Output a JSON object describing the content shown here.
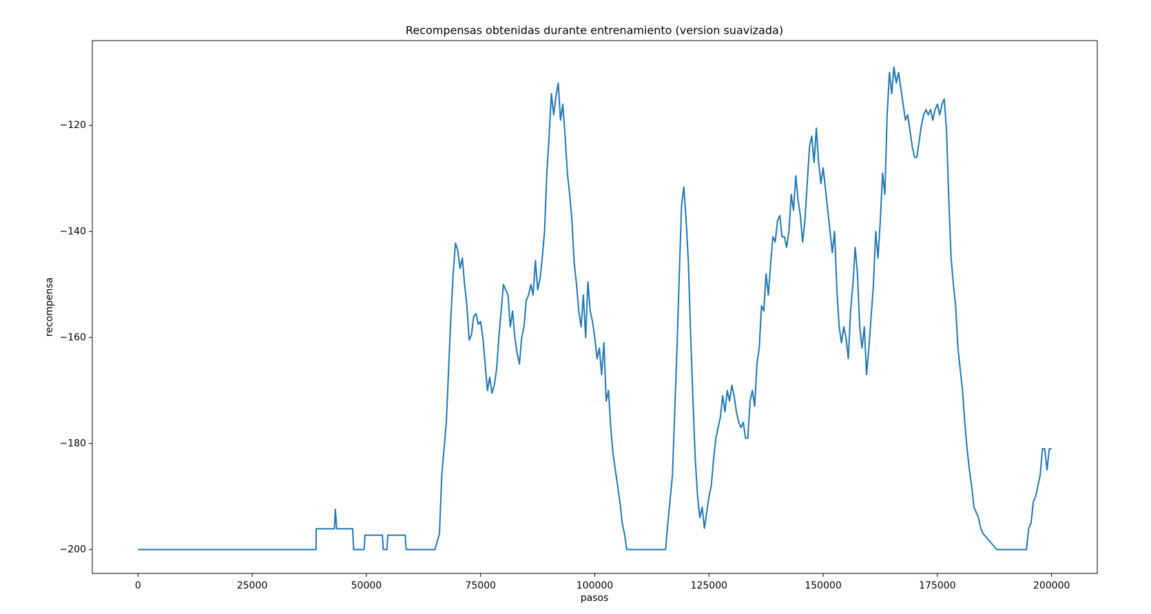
{
  "chart_data": {
    "type": "line",
    "title": "Recompensas obtenidas durante entrenamiento (version suavizada)",
    "x_label": "pasos",
    "y_label": "recompensa",
    "xlim": [
      -10000,
      210000
    ],
    "ylim": [
      -204.5,
      -104
    ],
    "xticks": [
      0,
      25000,
      50000,
      75000,
      100000,
      125000,
      150000,
      175000,
      200000
    ],
    "yticks": [
      {
        "value": -200,
        "label": "−200"
      },
      {
        "value": -180,
        "label": "−180"
      },
      {
        "value": -160,
        "label": "−160"
      },
      {
        "value": -140,
        "label": "−140"
      },
      {
        "value": -120,
        "label": "−120"
      }
    ],
    "x": [
      0,
      39000,
      39000,
      43000,
      43200,
      43500,
      47000,
      47200,
      49500,
      49700,
      53500,
      53700,
      54500,
      54700,
      58500,
      58700,
      65000,
      66000,
      66500,
      67500,
      68000,
      68500,
      69000,
      69500,
      70000,
      70500,
      71000,
      71500,
      72000,
      72500,
      73000,
      73500,
      74000,
      74500,
      75000,
      75500,
      76000,
      76500,
      77000,
      77500,
      78000,
      78500,
      79000,
      79500,
      80000,
      80500,
      81000,
      81500,
      82000,
      82500,
      83000,
      83500,
      84000,
      84500,
      85000,
      85500,
      86000,
      86500,
      87000,
      87500,
      88000,
      88500,
      89000,
      89500,
      90000,
      90500,
      91000,
      91500,
      92000,
      92500,
      93000,
      93500,
      94000,
      94500,
      95000,
      95500,
      96000,
      96500,
      97000,
      97500,
      98000,
      98500,
      99000,
      99500,
      100000,
      100500,
      101000,
      101500,
      102000,
      102500,
      103000,
      103500,
      104000,
      104500,
      105000,
      105500,
      106000,
      106500,
      107000,
      115500,
      116000,
      117000,
      118000,
      118500,
      119000,
      119500,
      120000,
      120500,
      121000,
      121500,
      122000,
      122500,
      123000,
      123500,
      124000,
      124500,
      125000,
      125500,
      126000,
      126500,
      127000,
      127500,
      128000,
      128500,
      129000,
      129500,
      130000,
      130500,
      131000,
      131500,
      132000,
      132500,
      133000,
      133500,
      134000,
      134500,
      135000,
      135500,
      136000,
      136500,
      137000,
      137500,
      138000,
      138500,
      139000,
      139500,
      140000,
      140500,
      141000,
      141500,
      142000,
      142500,
      143000,
      143500,
      144000,
      144500,
      145000,
      145500,
      146000,
      146500,
      147000,
      147500,
      148000,
      148500,
      149000,
      149500,
      150000,
      150500,
      151000,
      151500,
      152000,
      152500,
      153000,
      153500,
      154000,
      154500,
      155000,
      155500,
      156000,
      156500,
      157000,
      157500,
      158000,
      158500,
      159000,
      159500,
      160000,
      160500,
      161000,
      161500,
      162000,
      162500,
      163000,
      163500,
      164000,
      164500,
      165000,
      165500,
      166000,
      166500,
      167000,
      167500,
      168000,
      168500,
      169000,
      169500,
      170000,
      170500,
      171000,
      171500,
      172000,
      172500,
      173000,
      173500,
      174000,
      174500,
      175000,
      175500,
      176000,
      176500,
      177000,
      177500,
      178000,
      178500,
      179000,
      179500,
      180000,
      180500,
      181000,
      181500,
      182000,
      182500,
      183000,
      183500,
      184000,
      184500,
      185000,
      185500,
      186000,
      187000,
      188000,
      194500,
      195000,
      195500,
      196000,
      196500,
      197000,
      197500,
      198000,
      198500,
      199000,
      199500,
      200000
    ],
    "series": [
      {
        "color": "#1f77b4",
        "values": [
          -200,
          -200,
          -196.1,
          -196.1,
          -192.4,
          -196.1,
          -196.1,
          -200,
          -200,
          -197.3,
          -197.3,
          -200,
          -200,
          -197.3,
          -197.3,
          -200,
          -200,
          -197,
          -186,
          -176,
          -166,
          -156,
          -148,
          -142.2,
          -143.5,
          -147,
          -145,
          -150,
          -154,
          -160.5,
          -159.5,
          -156,
          -155.5,
          -157.5,
          -157,
          -160,
          -165,
          -170,
          -167.5,
          -170.5,
          -169,
          -166,
          -160,
          -155,
          -150,
          -151,
          -152,
          -158,
          -155,
          -160,
          -163,
          -165,
          -160,
          -158,
          -153,
          -152,
          -150,
          -152,
          -145.5,
          -151,
          -149,
          -145,
          -140,
          -129,
          -122,
          -114,
          -118,
          -114.5,
          -112,
          -119,
          -116,
          -122,
          -129,
          -133,
          -138,
          -146,
          -150,
          -155,
          -158,
          -152,
          -160,
          -149.5,
          -155,
          -157,
          -160,
          -164,
          -162,
          -167,
          -161,
          -172,
          -170,
          -177,
          -182,
          -185,
          -188,
          -191,
          -195,
          -197,
          -200,
          -200,
          -195,
          -186,
          -162,
          -148,
          -135,
          -131.6,
          -138,
          -146,
          -160,
          -172,
          -183,
          -190,
          -194,
          -192,
          -196,
          -193,
          -190,
          -188,
          -183,
          -179,
          -177,
          -175,
          -171,
          -174,
          -170,
          -172,
          -169,
          -171,
          -174,
          -176,
          -177,
          -176,
          -179,
          -179,
          -172,
          -170,
          -173,
          -165,
          -162,
          -154,
          -155,
          -148,
          -152,
          -146,
          -141,
          -142,
          -138,
          -137,
          -141,
          -141,
          -143,
          -140,
          -133,
          -136,
          -129.5,
          -134,
          -137,
          -142,
          -138,
          -131,
          -124,
          -122,
          -127,
          -120.5,
          -127,
          -131,
          -128,
          -132,
          -136,
          -140,
          -144,
          -140,
          -151,
          -158,
          -161,
          -158,
          -160,
          -164,
          -155,
          -150,
          -143,
          -148,
          -158,
          -162,
          -158,
          -167,
          -162,
          -156,
          -150,
          -140,
          -145,
          -138,
          -129,
          -133,
          -118,
          -110,
          -114,
          -109,
          -112,
          -110,
          -113,
          -116,
          -119,
          -118,
          -121,
          -124,
          -126,
          -126,
          -123,
          -120,
          -118,
          -117,
          -118,
          -117,
          -119,
          -117,
          -116,
          -118,
          -116,
          -115,
          -121,
          -134,
          -145,
          -150,
          -154,
          -162,
          -166,
          -170,
          -176,
          -181,
          -185,
          -188,
          -192,
          -193,
          -194,
          -196,
          -197,
          -197.5,
          -198,
          -199,
          -200,
          -200,
          -196,
          -195,
          -191,
          -190,
          -188,
          -186,
          -181,
          -181,
          -185,
          -181,
          -181
        ]
      }
    ]
  }
}
